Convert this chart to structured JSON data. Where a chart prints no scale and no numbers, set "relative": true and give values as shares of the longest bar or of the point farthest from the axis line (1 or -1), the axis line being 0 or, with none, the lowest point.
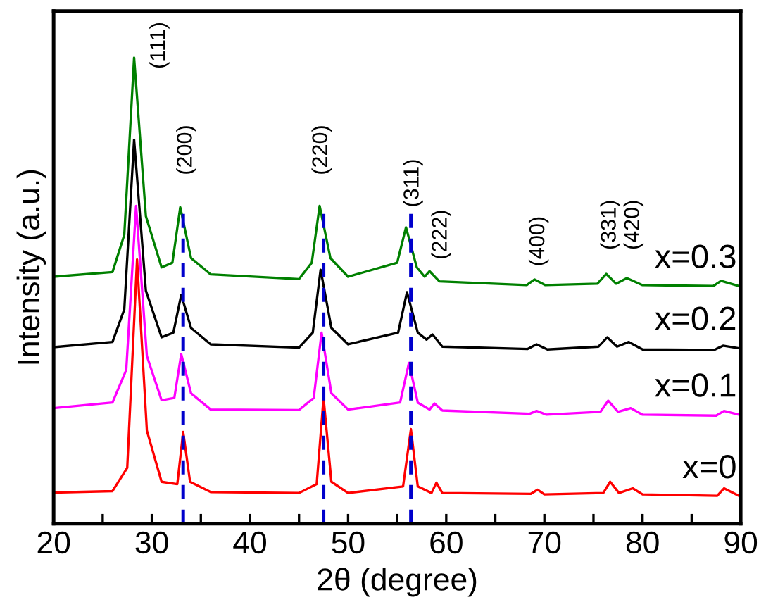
{
  "chart_data": {
    "type": "line",
    "relative": true,
    "xlabel": "2θ (degree)",
    "ylabel": "Intensity (a.u.)",
    "xlim": [
      20,
      90
    ],
    "xticks": [
      20,
      {
        "value": 25,
        "label": null
      },
      30,
      {
        "value": 35,
        "label": null
      },
      40,
      {
        "value": 45,
        "label": null
      },
      50,
      {
        "value": 55,
        "label": null
      },
      60,
      {
        "value": 65,
        "label": null
      },
      70,
      {
        "value": 75,
        "label": null
      },
      80,
      {
        "value": 85,
        "label": null
      },
      90
    ],
    "grid": false,
    "legend": false,
    "marker": "none",
    "line_style": "solid",
    "tick_labels": "x",
    "series": [
      {
        "name": "x=0",
        "color": "#ff0000",
        "x": [
          20,
          26,
          27.5,
          28.5,
          29.5,
          31,
          32.6,
          33.2,
          33.9,
          36,
          45,
          46.8,
          47.5,
          48.3,
          50,
          55.6,
          56.4,
          57.1,
          58.5,
          59,
          59.6,
          68.6,
          69.3,
          70,
          76,
          76.7,
          77.6,
          79,
          80,
          87.6,
          88.3,
          90
        ],
        "values": [
          0.067,
          0.07,
          0.12,
          0.567,
          0.2,
          0.09,
          0.085,
          0.197,
          0.09,
          0.068,
          0.066,
          0.085,
          0.27,
          0.09,
          0.066,
          0.08,
          0.203,
          0.08,
          0.066,
          0.088,
          0.066,
          0.064,
          0.073,
          0.063,
          0.066,
          0.09,
          0.066,
          0.076,
          0.063,
          0.06,
          0.076,
          0.058
        ]
      },
      {
        "name": "x=0.1",
        "color": "#ff00ff",
        "x": [
          20,
          26,
          27.4,
          28.4,
          29.5,
          31,
          32.3,
          33,
          34,
          36,
          45,
          46.5,
          47.3,
          48.3,
          50,
          55.3,
          56.2,
          57.1,
          58.3,
          58.8,
          59.6,
          68.5,
          69.2,
          70.2,
          75.7,
          76.5,
          77.5,
          78.8,
          80,
          87.5,
          88.3,
          90
        ],
        "values": [
          0.248,
          0.26,
          0.33,
          0.682,
          0.36,
          0.265,
          0.27,
          0.364,
          0.28,
          0.245,
          0.244,
          0.27,
          0.41,
          0.28,
          0.245,
          0.26,
          0.345,
          0.26,
          0.245,
          0.258,
          0.243,
          0.236,
          0.242,
          0.234,
          0.24,
          0.264,
          0.24,
          0.248,
          0.234,
          0.232,
          0.242,
          0.233
        ]
      },
      {
        "name": "x=0.2",
        "color": "#000000",
        "x": [
          20,
          26,
          27.2,
          28.2,
          29.4,
          31,
          32.2,
          33,
          34,
          36,
          45,
          46.4,
          47.2,
          48.3,
          50,
          55.1,
          56,
          57.1,
          58,
          58.6,
          59.6,
          68.3,
          69.2,
          70.3,
          75.5,
          76.4,
          77.4,
          78.6,
          80,
          87.3,
          88.2,
          90
        ],
        "values": [
          0.379,
          0.39,
          0.46,
          0.824,
          0.5,
          0.4,
          0.41,
          0.491,
          0.42,
          0.385,
          0.378,
          0.41,
          0.545,
          0.42,
          0.385,
          0.41,
          0.497,
          0.41,
          0.395,
          0.406,
          0.38,
          0.375,
          0.385,
          0.374,
          0.38,
          0.4,
          0.38,
          0.39,
          0.374,
          0.373,
          0.382,
          0.376
        ]
      },
      {
        "name": "x=0.3",
        "color": "#008000",
        "x": [
          20,
          26,
          27.2,
          28.2,
          29.4,
          31,
          32.1,
          32.9,
          34,
          36,
          45,
          46.3,
          47.1,
          48.2,
          50,
          55,
          55.9,
          57,
          57.8,
          58.3,
          59.3,
          68.2,
          69,
          70.1,
          75.4,
          76.3,
          77.3,
          78.4,
          80,
          87.2,
          88,
          90
        ],
        "values": [
          0.53,
          0.54,
          0.62,
          1.0,
          0.66,
          0.55,
          0.56,
          0.679,
          0.57,
          0.535,
          0.525,
          0.56,
          0.682,
          0.57,
          0.53,
          0.56,
          0.636,
          0.55,
          0.53,
          0.542,
          0.52,
          0.512,
          0.524,
          0.512,
          0.515,
          0.536,
          0.515,
          0.527,
          0.512,
          0.51,
          0.521,
          0.509
        ]
      }
    ],
    "ref_lines": [
      {
        "axis": "x",
        "value": 33.2,
        "color": "#0000cc",
        "line_style": "dashed"
      },
      {
        "axis": "x",
        "value": 47.5,
        "color": "#0000cc",
        "line_style": "dashed"
      },
      {
        "axis": "x",
        "value": 56.4,
        "color": "#0000cc",
        "line_style": "dashed"
      }
    ],
    "annotations": [
      "(111)",
      "(200)",
      "(220)",
      "(311)",
      "(222)",
      "(400)",
      "(331)",
      "(420)"
    ]
  }
}
